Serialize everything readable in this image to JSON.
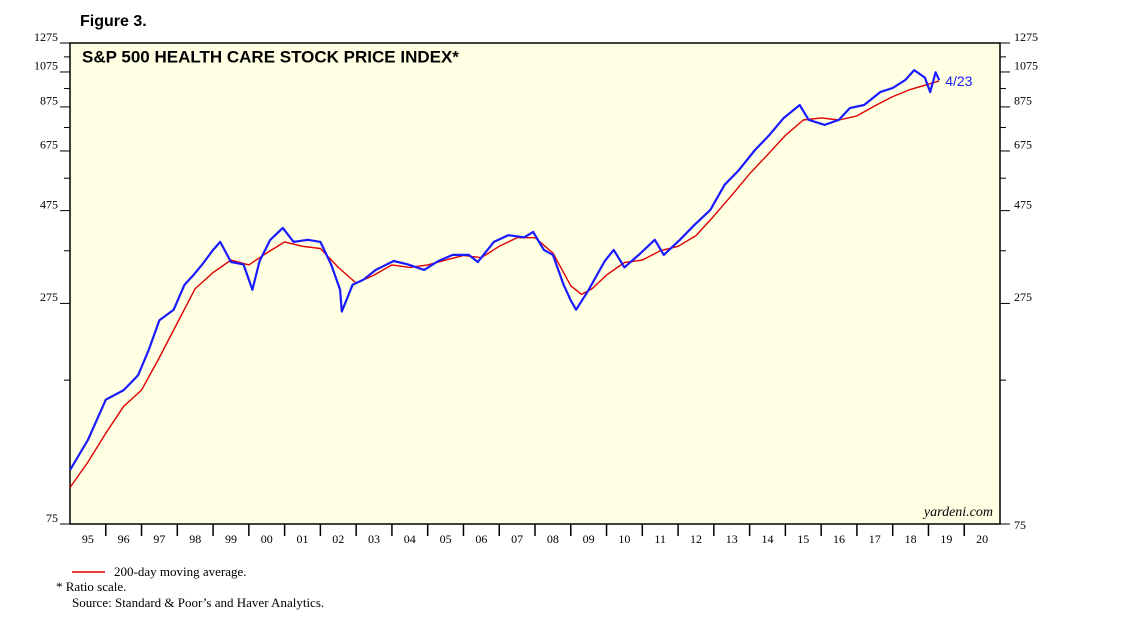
{
  "figure_label": "Figure 3.",
  "chart_data": {
    "type": "line",
    "title": "S&P 500 HEALTH CARE STOCK PRICE INDEX*",
    "log_scale": true,
    "ylim": [
      75,
      1275
    ],
    "yticks": [
      75,
      275,
      475,
      675,
      875,
      1075,
      1275
    ],
    "yminor_ticks": [
      175,
      375,
      575,
      775,
      975,
      1175
    ],
    "xlim": [
      1995,
      2021
    ],
    "xticks": [
      {
        "value": 1995.5,
        "label": "95"
      },
      {
        "value": 1996.5,
        "label": "96"
      },
      {
        "value": 1997.5,
        "label": "97"
      },
      {
        "value": 1998.5,
        "label": "98"
      },
      {
        "value": 1999.5,
        "label": "99"
      },
      {
        "value": 2000.5,
        "label": "00"
      },
      {
        "value": 2001.5,
        "label": "01"
      },
      {
        "value": 2002.5,
        "label": "02"
      },
      {
        "value": 2003.5,
        "label": "03"
      },
      {
        "value": 2004.5,
        "label": "04"
      },
      {
        "value": 2005.5,
        "label": "05"
      },
      {
        "value": 2006.5,
        "label": "06"
      },
      {
        "value": 2007.5,
        "label": "07"
      },
      {
        "value": 2008.5,
        "label": "08"
      },
      {
        "value": 2009.5,
        "label": "09"
      },
      {
        "value": 2010.5,
        "label": "10"
      },
      {
        "value": 2011.5,
        "label": "11"
      },
      {
        "value": 2012.5,
        "label": "12"
      },
      {
        "value": 2013.5,
        "label": "13"
      },
      {
        "value": 2014.5,
        "label": "14"
      },
      {
        "value": 2015.5,
        "label": "15"
      },
      {
        "value": 2016.5,
        "label": "16"
      },
      {
        "value": 2017.5,
        "label": "17"
      },
      {
        "value": 2018.5,
        "label": "18"
      },
      {
        "value": 2019.5,
        "label": "19"
      },
      {
        "value": 2020.5,
        "label": "20"
      }
    ],
    "xminor_ticks": [
      1996,
      1997,
      1998,
      1999,
      2000,
      2001,
      2002,
      2003,
      2004,
      2005,
      2006,
      2007,
      2008,
      2009,
      2010,
      2011,
      2012,
      2013,
      2014,
      2015,
      2016,
      2017,
      2018,
      2019,
      2020
    ],
    "series": [
      {
        "color": "#1a1aff",
        "x": [
          1995.0,
          1995.5,
          1996.0,
          1996.5,
          1996.9,
          1997.2,
          1997.5,
          1997.9,
          1998.2,
          1998.45,
          1998.7,
          1999.0,
          1999.2,
          1999.5,
          1999.85,
          2000.1,
          2000.3,
          2000.6,
          2000.95,
          2001.25,
          2001.65,
          2002.0,
          2002.3,
          2002.55,
          2002.6,
          2002.9,
          2003.2,
          2003.55,
          2004.05,
          2004.45,
          2004.9,
          2005.3,
          2005.7,
          2006.15,
          2006.4,
          2006.85,
          2007.25,
          2007.7,
          2007.95,
          2008.25,
          2008.5,
          2008.8,
          2009.0,
          2009.15,
          2009.5,
          2009.95,
          2010.2,
          2010.5,
          2010.9,
          2011.35,
          2011.6,
          2012.05,
          2012.45,
          2012.9,
          2013.3,
          2013.7,
          2014.15,
          2014.55,
          2014.95,
          2015.4,
          2015.65,
          2016.1,
          2016.5,
          2016.8,
          2017.2,
          2017.65,
          2018.0,
          2018.35,
          2018.6,
          2018.9,
          2019.05,
          2019.2,
          2019.3
        ],
        "values": [
          103,
          123,
          156,
          165,
          180,
          209,
          249,
          265,
          307,
          325,
          346,
          377,
          395,
          351,
          346,
          298,
          353,
          400,
          429,
          395,
          400,
          395,
          346,
          298,
          262,
          307,
          316,
          335,
          353,
          346,
          335,
          353,
          366,
          366,
          351,
          395,
          411,
          406,
          419,
          377,
          366,
          307,
          280,
          265,
          298,
          353,
          377,
          340,
          366,
          400,
          366,
          400,
          436,
          477,
          553,
          603,
          679,
          741,
          819,
          885,
          811,
          787,
          811,
          869,
          885,
          955,
          978,
          1025,
          1087,
          1040,
          955,
          1073,
          1025
        ]
      },
      {
        "name": "200-day moving average.",
        "color": "#e00000",
        "x": [
          1995.0,
          1995.5,
          1996.0,
          1996.5,
          1997.0,
          1997.5,
          1998.0,
          1998.5,
          1999.0,
          1999.5,
          2000.0,
          2000.5,
          2001.0,
          2001.5,
          2002.0,
          2002.5,
          2003.0,
          2003.5,
          2004.0,
          2004.5,
          2005.0,
          2005.5,
          2006.0,
          2006.5,
          2007.0,
          2007.5,
          2008.0,
          2008.5,
          2009.0,
          2009.3,
          2009.6,
          2010.0,
          2010.5,
          2011.0,
          2011.5,
          2012.0,
          2012.5,
          2013.0,
          2013.5,
          2014.0,
          2014.5,
          2015.0,
          2015.5,
          2016.0,
          2016.5,
          2017.0,
          2017.5,
          2018.0,
          2018.5,
          2019.0,
          2019.3
        ],
        "values": [
          93,
          108,
          128,
          150,
          165,
          200,
          245,
          300,
          330,
          355,
          345,
          370,
          395,
          385,
          380,
          340,
          310,
          325,
          345,
          340,
          345,
          355,
          365,
          360,
          385,
          405,
          405,
          370,
          305,
          290,
          300,
          325,
          350,
          355,
          375,
          385,
          410,
          460,
          520,
          590,
          660,
          740,
          810,
          820,
          810,
          830,
          880,
          930,
          970,
          1000,
          1020
        ]
      }
    ],
    "end_label": "4/23",
    "watermark": "yardeni.com",
    "notes": [
      "* Ratio scale.",
      "Source: Standard & Poor’s and Haver Analytics."
    ]
  }
}
